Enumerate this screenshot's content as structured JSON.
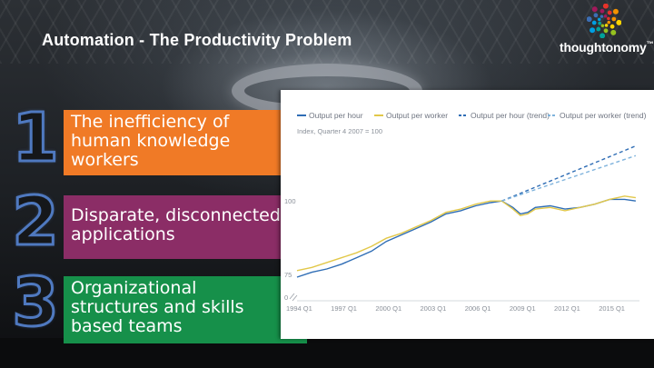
{
  "slide": {
    "title": "Automation - The Productivity Problem",
    "logo_text": "thoughtonomy",
    "logo_tm": "™"
  },
  "items": [
    {
      "number": "1",
      "lines": [
        "The inefficiency of",
        "human knowledge",
        "workers"
      ],
      "color": "#f07a26"
    },
    {
      "number": "2",
      "lines": [
        "Disparate, disconnected",
        "applications"
      ],
      "color": "#8b2d66"
    },
    {
      "number": "3",
      "lines": [
        "Organizational",
        "structures and skills",
        "based teams"
      ],
      "color": "#16904a"
    }
  ],
  "chart_data": {
    "type": "line",
    "subtitle": "Index, Quarter 4 2007 = 100",
    "x_tick_labels": [
      "1994 Q1",
      "1997 Q1",
      "2000 Q1",
      "2003 Q1",
      "2006 Q1",
      "2009 Q1",
      "2012 Q1",
      "2015 Q1"
    ],
    "y_tick_labels": [
      "0",
      "75",
      "100"
    ],
    "x_range": [
      1994.0,
      2017.0
    ],
    "ylim": [
      72,
      118
    ],
    "series": [
      {
        "name": "Output per hour",
        "color": "#2f6db5",
        "dash": "solid",
        "x": [
          1994.0,
          1995.0,
          1996.0,
          1997.0,
          1998.0,
          1999.0,
          2000.0,
          2001.0,
          2002.0,
          2003.0,
          2004.0,
          2005.0,
          2006.0,
          2007.0,
          2007.75,
          2008.5,
          2009.0,
          2009.5,
          2010.0,
          2011.0,
          2012.0,
          2013.0,
          2014.0,
          2015.0,
          2016.0,
          2016.75
        ],
        "values": [
          76.5,
          78.0,
          79.0,
          80.5,
          82.5,
          84.5,
          87.5,
          89.5,
          91.5,
          93.5,
          96.0,
          97.0,
          98.5,
          99.5,
          100.0,
          98.0,
          96.0,
          96.5,
          98.0,
          98.5,
          97.5,
          98.0,
          99.0,
          100.5,
          100.5,
          100.0
        ]
      },
      {
        "name": "Output per worker",
        "color": "#e2c84a",
        "dash": "solid",
        "x": [
          1994.0,
          1995.0,
          1996.0,
          1997.0,
          1998.0,
          1999.0,
          2000.0,
          2001.0,
          2002.0,
          2003.0,
          2004.0,
          2005.0,
          2006.0,
          2007.0,
          2007.75,
          2008.5,
          2009.0,
          2009.5,
          2010.0,
          2011.0,
          2012.0,
          2013.0,
          2014.0,
          2015.0,
          2016.0,
          2016.75
        ],
        "values": [
          78.5,
          79.5,
          81.0,
          82.5,
          84.0,
          86.0,
          88.5,
          90.0,
          92.0,
          94.0,
          96.5,
          97.5,
          99.0,
          100.0,
          100.0,
          97.5,
          95.5,
          96.0,
          97.5,
          98.0,
          97.0,
          98.0,
          99.0,
          100.5,
          101.5,
          101.0
        ]
      },
      {
        "name": "Output per hour (trend)",
        "color": "#2f6db5",
        "dash": "dashed",
        "x": [
          2007.75,
          2016.75
        ],
        "values": [
          100.0,
          117.0
        ]
      },
      {
        "name": "Output per worker (trend)",
        "color": "#7fb3dc",
        "dash": "dashed",
        "x": [
          2007.75,
          2016.75
        ],
        "values": [
          100.0,
          114.0
        ]
      }
    ]
  }
}
